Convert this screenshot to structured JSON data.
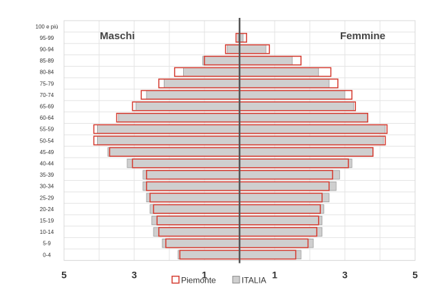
{
  "chart_data": {
    "type": "bar",
    "orientation": "horizontal",
    "layout": "population-pyramid",
    "left_title": "Maschi",
    "right_title": "Femmine",
    "categories": [
      "100 e più",
      "95-99",
      "90-94",
      "85-89",
      "80-84",
      "75-79",
      "70-74",
      "65-69",
      "60-64",
      "55-59",
      "50-54",
      "45-49",
      "40-44",
      "35-39",
      "30-34",
      "25-29",
      "20-24",
      "15-19",
      "10-14",
      "5-9",
      "0-4"
    ],
    "x_ticks": [
      "5",
      "3",
      "1",
      "1",
      "3",
      "5"
    ],
    "xlim": [
      -5,
      5
    ],
    "grid": true,
    "legend_position": "bottom",
    "series": [
      {
        "name": "Piemonte",
        "color": "#d43a2f",
        "fill": "none",
        "male": [
          0.0,
          0.1,
          0.4,
          1.0,
          1.85,
          2.3,
          2.8,
          3.05,
          3.5,
          4.15,
          4.15,
          3.7,
          3.05,
          2.65,
          2.65,
          2.55,
          2.45,
          2.35,
          2.3,
          2.1,
          1.7
        ],
        "female": [
          0.0,
          0.2,
          0.85,
          1.75,
          2.6,
          2.8,
          3.2,
          3.3,
          3.65,
          4.2,
          4.15,
          3.8,
          3.1,
          2.65,
          2.55,
          2.35,
          2.3,
          2.25,
          2.2,
          1.95,
          1.6
        ]
      },
      {
        "name": "ITALIA",
        "color": "#aaaaaa",
        "fill": "#cfcfcf",
        "male": [
          0.0,
          0.05,
          0.35,
          1.05,
          1.6,
          2.15,
          2.65,
          2.95,
          3.45,
          4.05,
          4.05,
          3.75,
          3.2,
          2.75,
          2.75,
          2.65,
          2.55,
          2.5,
          2.45,
          2.2,
          1.75
        ],
        "female": [
          0.0,
          0.1,
          0.75,
          1.5,
          2.25,
          2.55,
          3.0,
          3.25,
          3.65,
          4.15,
          4.1,
          3.8,
          3.2,
          2.85,
          2.75,
          2.55,
          2.4,
          2.35,
          2.35,
          2.1,
          1.75
        ]
      }
    ]
  }
}
